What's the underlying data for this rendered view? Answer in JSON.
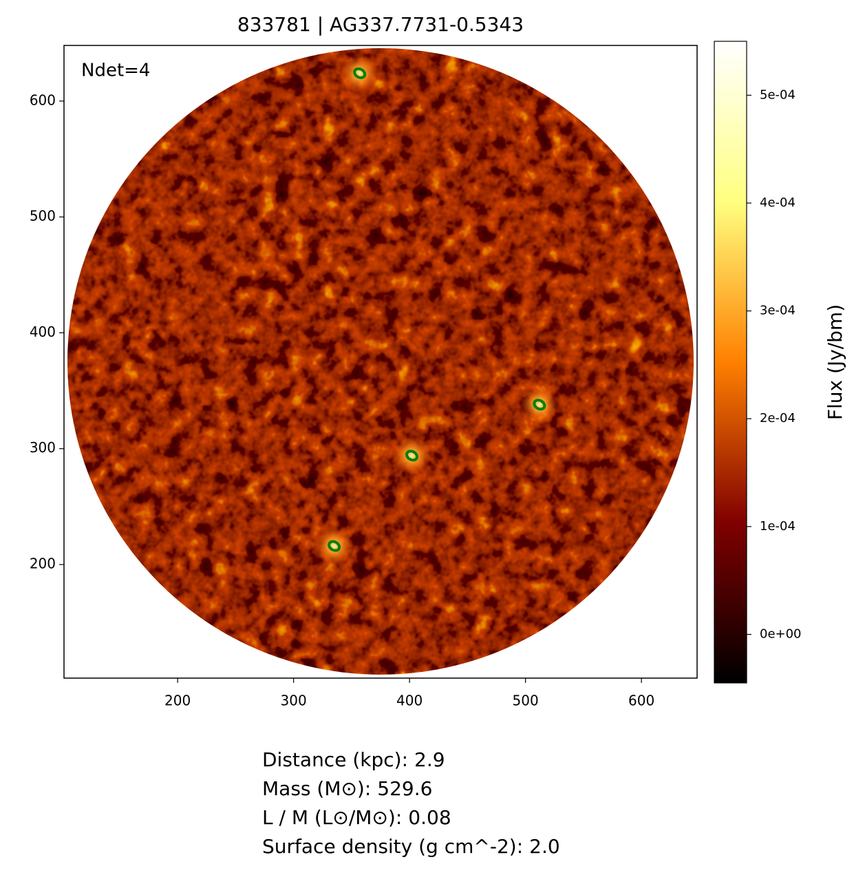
{
  "chart_data": {
    "type": "image",
    "title": "833781 | AG337.7731-0.5343",
    "annotation": "Ndet=4",
    "xlim": [
      102,
      648
    ],
    "ylim": [
      102,
      648
    ],
    "xticks": [
      200,
      300,
      400,
      500,
      600
    ],
    "yticks": [
      200,
      300,
      400,
      500,
      600
    ],
    "colormap": "afmhot",
    "colorbar_label": "Flux (Jy/bm)",
    "clim": [
      -4.5e-05,
      0.00055
    ],
    "cticks": [
      {
        "value": 0,
        "label": "0e+00"
      },
      {
        "value": 0.0001,
        "label": "1e-04"
      },
      {
        "value": 0.0002,
        "label": "2e-04"
      },
      {
        "value": 0.0003,
        "label": "3e-04"
      },
      {
        "value": 0.0004,
        "label": "4e-04"
      },
      {
        "value": 0.0005,
        "label": "5e-04"
      }
    ],
    "series": [
      {
        "type": "scatter",
        "color": "#008000",
        "x": [
          357,
          402,
          512,
          335
        ],
        "y": [
          624,
          294,
          338,
          216
        ]
      }
    ],
    "info": {
      "labels": [
        "Distance (kpc):",
        "Mass (M⊙):",
        "L / M (L⊙/M⊙):",
        "Surface density (g cm^-2):"
      ],
      "values": [
        2.9,
        529.6,
        0.08,
        2.0
      ],
      "value_labels": [
        "2.9",
        "529.6",
        "0.08",
        "2.0"
      ]
    }
  }
}
